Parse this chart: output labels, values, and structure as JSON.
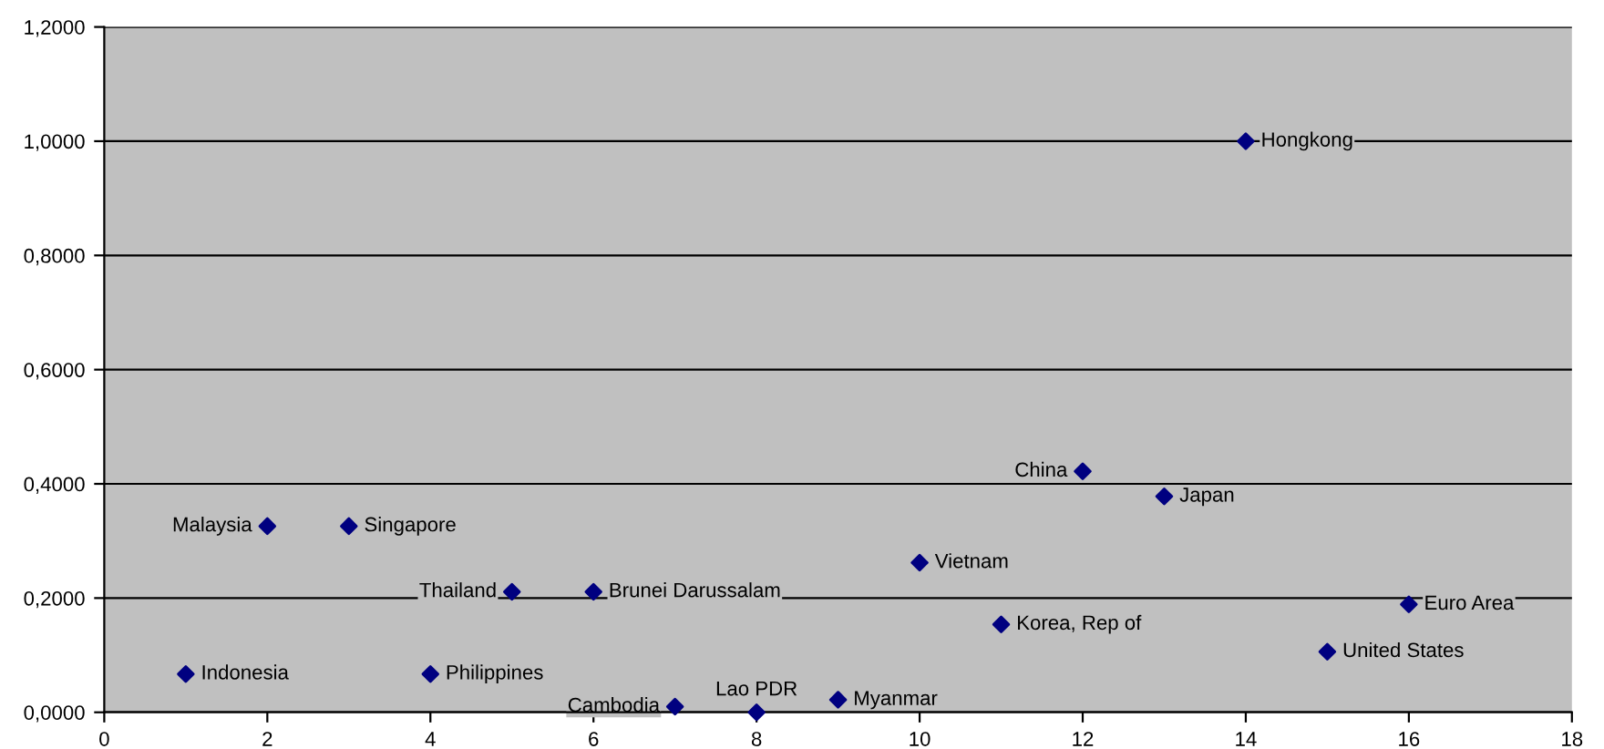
{
  "chart_data": {
    "type": "scatter",
    "marker": "diamond",
    "grid": "y",
    "x": [
      1,
      2,
      3,
      4,
      5,
      6,
      7,
      8,
      9,
      10,
      11,
      12,
      13,
      14,
      15,
      16
    ],
    "series": [
      {
        "color": "#000080",
        "values": [
          0.067,
          0.326,
          0.326,
          0.067,
          0.211,
          0.211,
          0.01,
          0.0,
          0.022,
          0.262,
          0.154,
          0.422,
          0.378,
          1.0,
          0.106,
          0.189
        ]
      }
    ],
    "annotations": [
      {
        "text": "Indonesia",
        "x": 1,
        "y": 0.067
      },
      {
        "text": "Malaysia",
        "x": 2,
        "y": 0.326
      },
      {
        "text": "Singapore",
        "x": 3,
        "y": 0.326
      },
      {
        "text": "Philippines",
        "x": 4,
        "y": 0.067
      },
      {
        "text": "Thailand",
        "x": 5,
        "y": 0.211
      },
      {
        "text": "Brunei Darussalam",
        "x": 6,
        "y": 0.211
      },
      {
        "text": "Cambodia",
        "x": 7,
        "y": 0.01
      },
      {
        "text": "Lao PDR",
        "x": 8,
        "y": 0.0
      },
      {
        "text": "Myanmar",
        "x": 9,
        "y": 0.022
      },
      {
        "text": "Vietnam",
        "x": 10,
        "y": 0.262
      },
      {
        "text": "Korea, Rep of",
        "x": 11,
        "y": 0.154
      },
      {
        "text": "China",
        "x": 12,
        "y": 0.422
      },
      {
        "text": "Japan",
        "x": 13,
        "y": 0.378
      },
      {
        "text": "Hongkong",
        "x": 14,
        "y": 1.0
      },
      {
        "text": "United States",
        "x": 15,
        "y": 0.106
      },
      {
        "text": "Euro Area",
        "x": 16,
        "y": 0.189
      }
    ],
    "xlim": [
      0,
      18
    ],
    "xticks": [
      0,
      2,
      4,
      6,
      8,
      10,
      12,
      14,
      16,
      18
    ],
    "ylim": [
      0,
      1.2
    ],
    "yticks": [
      {
        "value": 0,
        "label": "0,0000"
      },
      {
        "value": 0.2,
        "label": "0,2000"
      },
      {
        "value": 0.4,
        "label": "0,4000"
      },
      {
        "value": 0.6,
        "label": "0,6000"
      },
      {
        "value": 0.8,
        "label": "0,8000"
      },
      {
        "value": 1.0,
        "label": "1,0000"
      },
      {
        "value": 1.2,
        "label": "1,2000"
      }
    ]
  }
}
